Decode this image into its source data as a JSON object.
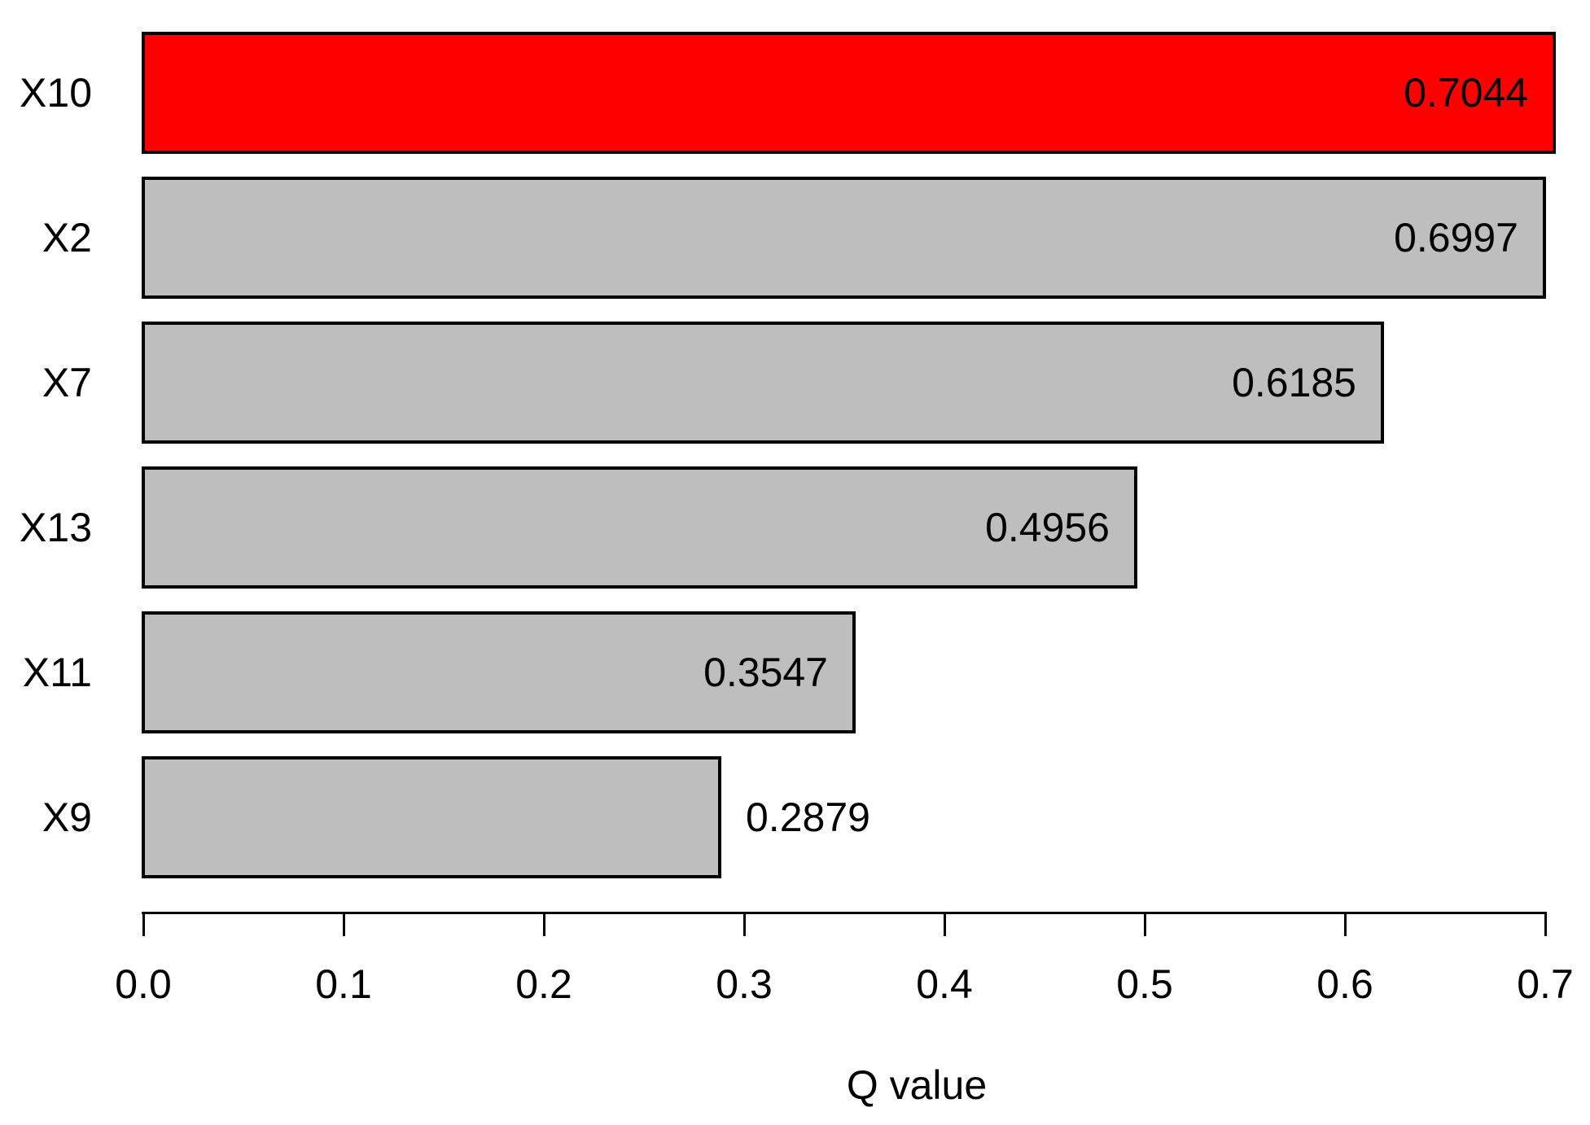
{
  "chart_data": {
    "type": "bar",
    "orientation": "horizontal",
    "title": "",
    "xlabel": "Q value",
    "ylabel": "",
    "categories": [
      "X10",
      "X2",
      "X7",
      "X13",
      "X11",
      "X9"
    ],
    "values": [
      0.7044,
      0.6997,
      0.6185,
      0.4956,
      0.3547,
      0.2879
    ],
    "value_labels": [
      "0.7044",
      "0.6997",
      "0.6185",
      "0.4956",
      "0.3547",
      "0.2879"
    ],
    "value_label_positions": [
      "inside",
      "inside",
      "inside",
      "inside",
      "inside",
      "outside"
    ],
    "bar_colors": [
      "#ff0000",
      "#bebebe",
      "#bebebe",
      "#bebebe",
      "#bebebe",
      "#bebebe"
    ],
    "bar_border_color": "#000000",
    "highlight_color": "#ff0000",
    "default_bar_color": "#bebebe",
    "x_ticks": [
      "0.0",
      "0.1",
      "0.2",
      "0.3",
      "0.4",
      "0.5",
      "0.6",
      "0.7"
    ],
    "x_tick_values": [
      0.0,
      0.1,
      0.2,
      0.3,
      0.4,
      0.5,
      0.6,
      0.7
    ],
    "xlim": [
      0,
      0.7
    ],
    "grid": false,
    "legend": null,
    "text_color": "#000000"
  }
}
